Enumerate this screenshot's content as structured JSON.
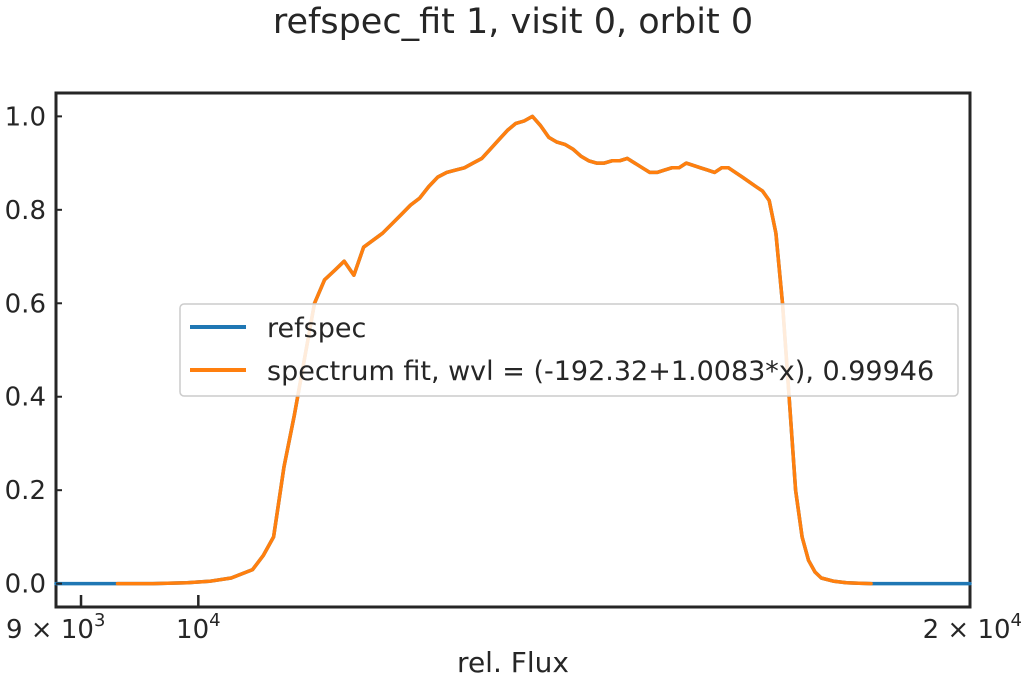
{
  "chart_data": {
    "type": "line",
    "title": "refspec_fit 1, visit 0, orbit 0",
    "xlabel": "rel. Flux",
    "ylabel": "",
    "xscale": "log",
    "xlim": [
      8800,
      20000
    ],
    "ylim": [
      -0.05,
      1.05
    ],
    "grid": false,
    "legend_position": "center-right",
    "yticks": [
      {
        "value": 0.0,
        "label": "0.0"
      },
      {
        "value": 0.2,
        "label": "0.2"
      },
      {
        "value": 0.4,
        "label": "0.4"
      },
      {
        "value": 0.6,
        "label": "0.6"
      },
      {
        "value": 0.8,
        "label": "0.8"
      },
      {
        "value": 1.0,
        "label": "1.0"
      }
    ],
    "xticks": [
      {
        "value": 9000,
        "base": "9 × 10",
        "exp": "3"
      },
      {
        "value": 10000,
        "base": "10",
        "exp": "4"
      },
      {
        "value": 20000,
        "base": "2 × 10",
        "exp": "4"
      }
    ],
    "series": [
      {
        "name": "refspec",
        "color": "#1f77b4",
        "x": [
          8800,
          9000,
          9300,
          9600,
          9900,
          10100,
          10300,
          10500,
          10600,
          10700,
          10800,
          10900,
          11000,
          11100,
          11200,
          11300,
          11400,
          11500,
          11600,
          11700,
          11800,
          11900,
          12000,
          12100,
          12200,
          12300,
          12400,
          12500,
          12600,
          12700,
          12800,
          12900,
          13000,
          13100,
          13200,
          13300,
          13400,
          13500,
          13600,
          13700,
          13800,
          13900,
          14000,
          14100,
          14200,
          14300,
          14400,
          14500,
          14600,
          14700,
          14800,
          14900,
          15000,
          15100,
          15200,
          15300,
          15400,
          15500,
          15600,
          15700,
          15800,
          15900,
          16000,
          16100,
          16200,
          16300,
          16400,
          16500,
          16600,
          16700,
          16800,
          16900,
          17000,
          17100,
          17200,
          17300,
          17400,
          17500,
          17700,
          17900,
          18100,
          18300,
          18500,
          19000,
          20000
        ],
        "y": [
          0.0,
          0.0,
          0.0,
          0.0,
          0.002,
          0.005,
          0.012,
          0.03,
          0.06,
          0.1,
          0.25,
          0.36,
          0.48,
          0.6,
          0.65,
          0.67,
          0.69,
          0.66,
          0.72,
          0.735,
          0.75,
          0.77,
          0.79,
          0.81,
          0.825,
          0.85,
          0.87,
          0.88,
          0.885,
          0.89,
          0.9,
          0.91,
          0.93,
          0.95,
          0.97,
          0.985,
          0.99,
          1.0,
          0.98,
          0.955,
          0.945,
          0.94,
          0.93,
          0.915,
          0.905,
          0.9,
          0.9,
          0.905,
          0.905,
          0.91,
          0.9,
          0.89,
          0.88,
          0.88,
          0.885,
          0.89,
          0.89,
          0.9,
          0.895,
          0.89,
          0.885,
          0.88,
          0.89,
          0.89,
          0.88,
          0.87,
          0.86,
          0.85,
          0.84,
          0.82,
          0.75,
          0.6,
          0.4,
          0.2,
          0.1,
          0.05,
          0.025,
          0.012,
          0.005,
          0.002,
          0.001,
          0.0,
          0.0,
          0.0,
          0.0
        ]
      },
      {
        "name": "spectrum fit, wvl = (-192.32+1.0083*x), 0.99946",
        "color": "#ff7f0e",
        "x": [
          9300,
          9600,
          9900,
          10100,
          10300,
          10500,
          10600,
          10700,
          10800,
          10900,
          11000,
          11100,
          11200,
          11300,
          11400,
          11500,
          11600,
          11700,
          11800,
          11900,
          12000,
          12100,
          12200,
          12300,
          12400,
          12500,
          12600,
          12700,
          12800,
          12900,
          13000,
          13100,
          13200,
          13300,
          13400,
          13500,
          13600,
          13700,
          13800,
          13900,
          14000,
          14100,
          14200,
          14300,
          14400,
          14500,
          14600,
          14700,
          14800,
          14900,
          15000,
          15100,
          15200,
          15300,
          15400,
          15500,
          15600,
          15700,
          15800,
          15900,
          16000,
          16100,
          16200,
          16300,
          16400,
          16500,
          16600,
          16700,
          16800,
          16900,
          17000,
          17100,
          17200,
          17300,
          17400,
          17500,
          17700,
          17900,
          18100,
          18300
        ],
        "y": [
          0.0,
          0.0,
          0.002,
          0.005,
          0.012,
          0.03,
          0.06,
          0.1,
          0.25,
          0.36,
          0.48,
          0.6,
          0.65,
          0.67,
          0.69,
          0.66,
          0.72,
          0.735,
          0.75,
          0.77,
          0.79,
          0.81,
          0.825,
          0.85,
          0.87,
          0.88,
          0.885,
          0.89,
          0.9,
          0.91,
          0.93,
          0.95,
          0.97,
          0.985,
          0.99,
          1.0,
          0.98,
          0.955,
          0.945,
          0.94,
          0.93,
          0.915,
          0.905,
          0.9,
          0.9,
          0.905,
          0.905,
          0.91,
          0.9,
          0.89,
          0.88,
          0.88,
          0.885,
          0.89,
          0.89,
          0.9,
          0.895,
          0.89,
          0.885,
          0.88,
          0.89,
          0.89,
          0.88,
          0.87,
          0.86,
          0.85,
          0.84,
          0.82,
          0.75,
          0.6,
          0.4,
          0.2,
          0.1,
          0.05,
          0.025,
          0.012,
          0.005,
          0.002,
          0.001,
          0.0
        ]
      }
    ]
  }
}
